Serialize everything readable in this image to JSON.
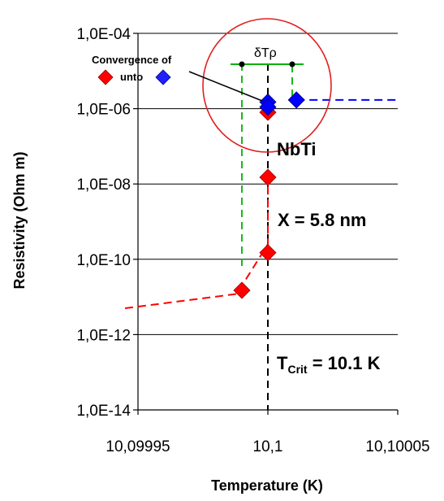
{
  "chart_data": {
    "type": "scatter",
    "xlabel": "Temperature (K)",
    "ylabel": "Resistivity (Ohm m)",
    "xlim": [
      10.09995,
      10.10005
    ],
    "ylim_log10": [
      -14,
      -4
    ],
    "y_scale": "log",
    "grid": "horizontal",
    "x_ticks": [
      {
        "value": 10.09995,
        "label": "10,09995"
      },
      {
        "value": 10.1,
        "label": "10,1"
      },
      {
        "value": 10.10005,
        "label": "10,10005"
      }
    ],
    "y_ticks": [
      {
        "log10": -4,
        "label": "1,0E-04"
      },
      {
        "log10": -6,
        "label": "1,0E-06"
      },
      {
        "log10": -8,
        "label": "1,0E-08"
      },
      {
        "log10": -10,
        "label": "1,0E-10"
      },
      {
        "log10": -12,
        "label": "1,0E-12"
      },
      {
        "log10": -14,
        "label": "1,0E-14"
      }
    ],
    "series": [
      {
        "marker": "diamond",
        "color": "#ff0000",
        "points": [
          {
            "x": 10.09999,
            "y": 1.5e-11
          },
          {
            "x": 10.1,
            "y": 1.5e-10
          },
          {
            "x": 10.1,
            "y": 1.5e-08
          },
          {
            "x": 10.1,
            "y": 8e-07
          }
        ],
        "trend": [
          {
            "x": 10.099945,
            "y": 5e-12
          },
          {
            "x": 10.099988,
            "y": 1.2e-11
          },
          {
            "x": 10.1,
            "y": 2.5e-10
          },
          {
            "x": 10.1,
            "y": 1.4e-08
          }
        ]
      },
      {
        "marker": "diamond",
        "color": "#0000ff",
        "points": [
          {
            "x": 10.1,
            "y": 1.5e-06
          },
          {
            "x": 10.1,
            "y": 1.1e-06
          },
          {
            "x": 10.100011,
            "y": 1.7e-06
          }
        ],
        "trend": [
          {
            "x": 10.100011,
            "y": 1.7e-06
          },
          {
            "x": 10.10005,
            "y": 1.7e-06
          }
        ]
      }
    ],
    "reference_lines": [
      {
        "axis": "x",
        "value": 10.1,
        "style": "dashed",
        "color": "#000000"
      },
      {
        "axis": "x",
        "value": 10.09999,
        "style": "dashed",
        "color": "#00b000"
      }
    ],
    "annotations": {
      "convergence_line1": "Convergence of",
      "convergence_line2": "unto",
      "delta_label": "δTρ",
      "material": "NbTi",
      "x_value": "X = 5.8 nm",
      "tcrit_main": "T",
      "tcrit_sub": "Crit",
      "tcrit_value": " = 10.1 K"
    },
    "colors": {
      "red_marker": "#ff0000",
      "blue_marker": "#0000ff",
      "green_lines": "#00b000",
      "ellipse": "#e02020",
      "grid": "#000000"
    }
  }
}
